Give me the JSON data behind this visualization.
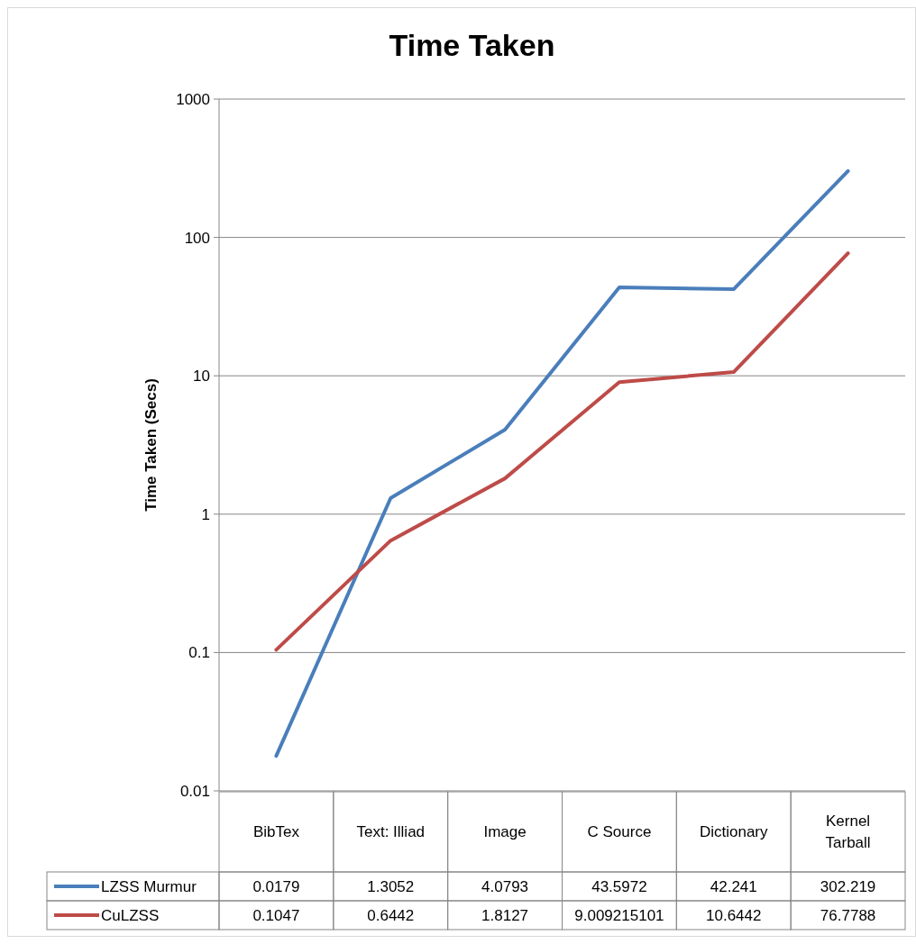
{
  "chart_data": {
    "type": "line",
    "title": "Time Taken",
    "ylabel": "Time Taken (Secs)",
    "categories": [
      "BibTex",
      "Text: Illiad",
      "Image",
      "C Source",
      "Dictionary",
      "Kernel Tarball"
    ],
    "series": [
      {
        "name": "LZSS Murmur",
        "color": "#4a7ebb",
        "values": [
          0.0179,
          1.3052,
          4.0793,
          43.5972,
          42.241,
          302.219
        ]
      },
      {
        "name": "CuLZSS",
        "color": "#be4b48",
        "values": [
          0.1047,
          0.6442,
          1.8127,
          9.009215101,
          10.6442,
          76.7788
        ]
      }
    ],
    "log": true,
    "ylim": [
      0.01,
      1000
    ],
    "yticks": [
      0.01,
      0.1,
      1,
      10,
      100,
      1000
    ],
    "grid": "y",
    "legend": "bottom",
    "data_labels": true,
    "marker": "none",
    "line_style": "solid"
  }
}
